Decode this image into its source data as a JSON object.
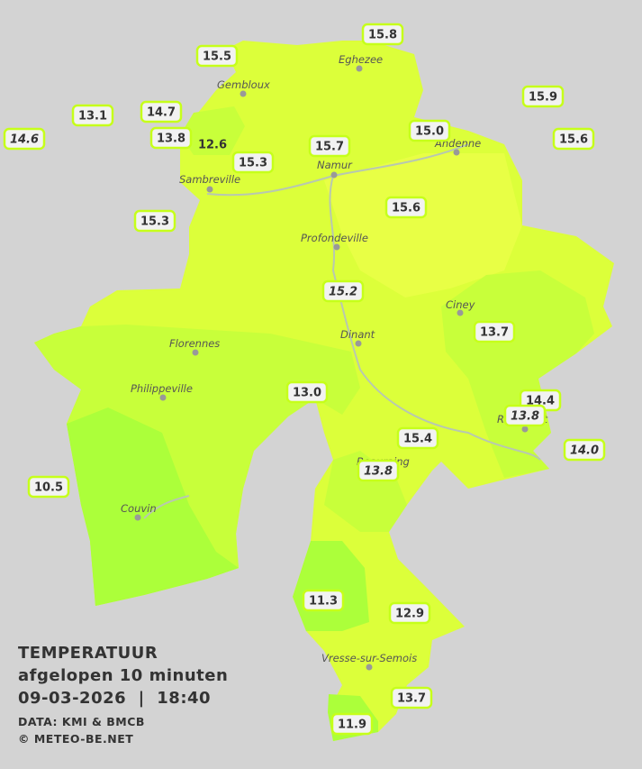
{
  "legend": {
    "title": "TEMPERATUUR",
    "subtitle": "afgelopen 10 minuten",
    "datetime": "09-03-2026  |  18:40",
    "source": "DATA: KMI & BMCB",
    "copyright": "© METEO-BE.NET"
  },
  "cities": [
    "Eghezee",
    "Gembloux",
    "Andenne",
    "Namur",
    "Sambreville",
    "Profondeville",
    "Ciney",
    "Dinant",
    "Florennes",
    "Philippeville",
    "Rochefort",
    "Beauraing",
    "Couvin",
    "Vresse-sur-Semois"
  ],
  "stations": [
    "15.8",
    "15.5",
    "15.9",
    "13.1",
    "14.7",
    "14.6",
    "13.8",
    "12.6",
    "15.3",
    "15.7",
    "15.0",
    "15.6",
    "15.6",
    "15.3",
    "15.2",
    "13.7",
    "13.0",
    "14.4",
    "13.8",
    "14.0",
    "15.4",
    "13.8",
    "10.5",
    "11.3",
    "12.9",
    "13.7",
    "11.9"
  ]
}
